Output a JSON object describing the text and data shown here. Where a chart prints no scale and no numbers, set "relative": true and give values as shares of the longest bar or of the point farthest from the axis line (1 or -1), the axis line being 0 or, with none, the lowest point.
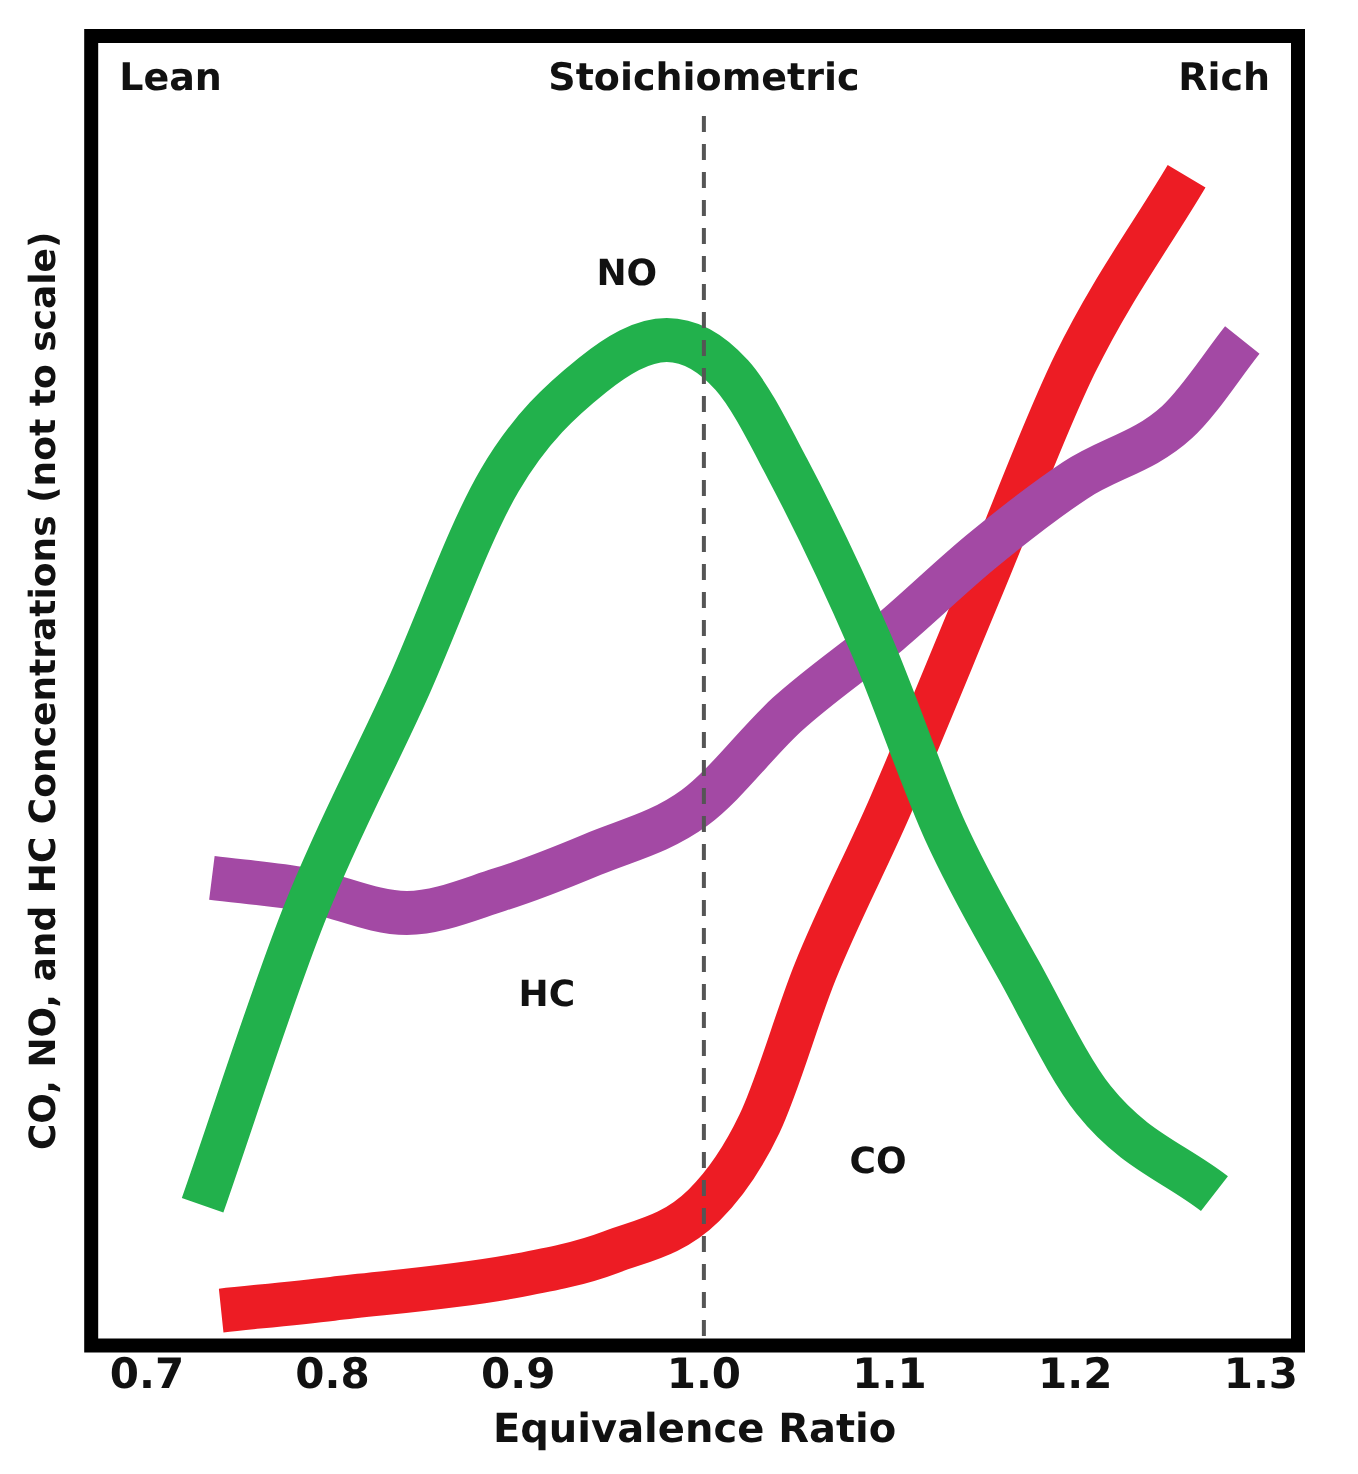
{
  "chart_data": {
    "type": "line",
    "relative": true,
    "xlabel": "Equivalence Ratio",
    "ylabel": "CO, NO, and HC Concentrations (not to scale)",
    "xlim": [
      0.67,
      1.32
    ],
    "xticks": [
      {
        "value": 0.7,
        "label": "0.7"
      },
      {
        "value": 0.8,
        "label": "0.8"
      },
      {
        "value": 0.9,
        "label": "0.9"
      },
      {
        "value": 1.0,
        "label": "1.0"
      },
      {
        "value": 1.1,
        "label": "1.1"
      },
      {
        "value": 1.2,
        "label": "1.2"
      },
      {
        "value": 1.3,
        "label": "1.3"
      }
    ],
    "grid": false,
    "legend": false,
    "marker": "none",
    "line_style": "solid",
    "annotations": [
      "Lean",
      "Rich"
    ],
    "ref_lines": [
      {
        "axis": "x",
        "value": 1.0,
        "label": "Stoichiometric",
        "color": "#555555",
        "line_style": "dashed"
      }
    ],
    "series": [
      {
        "name": "NO",
        "color": "#22b14c",
        "x": [
          0.73,
          0.785,
          0.84,
          0.89,
          0.94,
          0.98,
          1.015,
          1.045,
          1.09,
          1.13,
          1.17,
          1.21,
          1.275
        ],
        "values": [
          0.12,
          0.37,
          0.56,
          0.74,
          0.83,
          0.86,
          0.83,
          0.75,
          0.6,
          0.44,
          0.32,
          0.21,
          0.13
        ]
      },
      {
        "name": "HC",
        "color": "#a349a4",
        "x": [
          0.735,
          0.785,
          0.84,
          0.89,
          0.94,
          0.995,
          1.045,
          1.1,
          1.15,
          1.2,
          1.255,
          1.29
        ],
        "values": [
          0.4,
          0.39,
          0.37,
          0.39,
          0.42,
          0.46,
          0.54,
          0.61,
          0.68,
          0.74,
          0.79,
          0.86
        ]
      },
      {
        "name": "CO",
        "color": "#ed1c24",
        "x": [
          0.74,
          0.8,
          0.9,
          0.95,
          1.0,
          1.03,
          1.06,
          1.1,
          1.15,
          1.2,
          1.26
        ],
        "values": [
          0.03,
          0.04,
          0.06,
          0.08,
          0.12,
          0.19,
          0.32,
          0.46,
          0.65,
          0.84,
          1.0
        ]
      }
    ]
  }
}
